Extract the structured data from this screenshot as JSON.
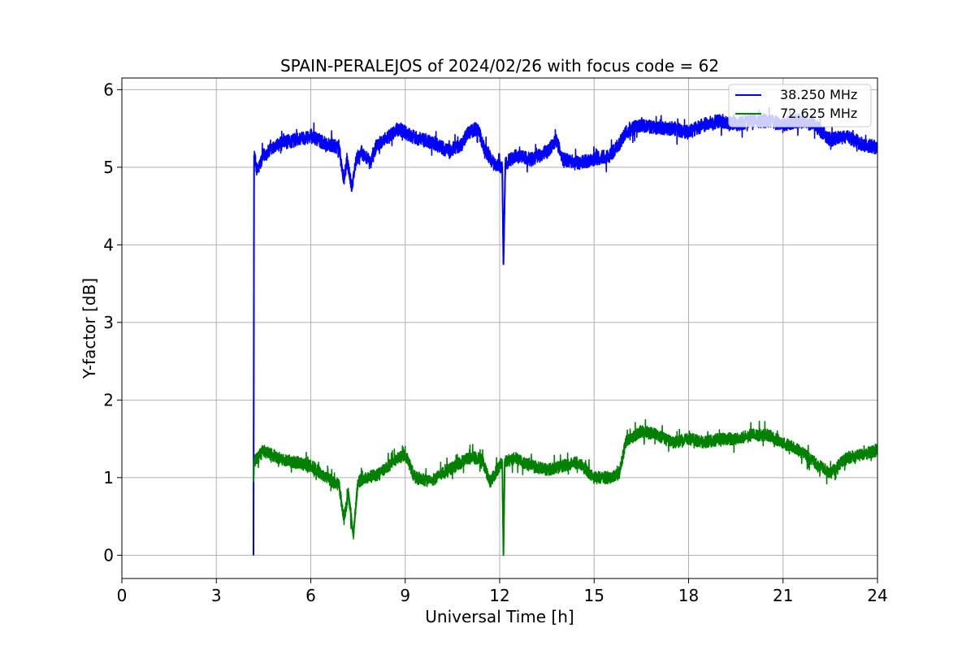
{
  "chart_data": {
    "type": "line",
    "title": "SPAIN-PERALEJOS of 2024/02/26 with focus code = 62",
    "xlabel": "Universal Time [h]",
    "ylabel": "Y-factor [dB]",
    "xlim": [
      0,
      24
    ],
    "ylim": [
      -0.3,
      6.15
    ],
    "xticks": [
      0,
      3,
      6,
      9,
      12,
      15,
      18,
      21,
      24
    ],
    "xtick_labels": [
      "0",
      "3",
      "6",
      "9",
      "12",
      "15",
      "18",
      "21",
      "24"
    ],
    "yticks": [
      0,
      1,
      2,
      3,
      4,
      5,
      6
    ],
    "ytick_labels": [
      "0",
      "1",
      "2",
      "3",
      "4",
      "5",
      "6"
    ],
    "grid": true,
    "legend_position": "top-right",
    "series": [
      {
        "name": "38.250 MHz",
        "color": "#0000ff",
        "noise_amplitude": 0.09,
        "points": [
          [
            4.18,
            0.0
          ],
          [
            4.2,
            5.15
          ],
          [
            4.3,
            4.95
          ],
          [
            4.5,
            5.15
          ],
          [
            5.0,
            5.3
          ],
          [
            5.5,
            5.35
          ],
          [
            6.0,
            5.4
          ],
          [
            6.5,
            5.3
          ],
          [
            6.9,
            5.25
          ],
          [
            7.05,
            4.8
          ],
          [
            7.15,
            5.1
          ],
          [
            7.3,
            4.75
          ],
          [
            7.45,
            5.1
          ],
          [
            7.6,
            5.2
          ],
          [
            7.9,
            5.05
          ],
          [
            8.1,
            5.3
          ],
          [
            8.5,
            5.4
          ],
          [
            8.8,
            5.5
          ],
          [
            9.2,
            5.4
          ],
          [
            9.6,
            5.35
          ],
          [
            10.0,
            5.3
          ],
          [
            10.4,
            5.2
          ],
          [
            10.8,
            5.3
          ],
          [
            11.0,
            5.45
          ],
          [
            11.3,
            5.5
          ],
          [
            11.5,
            5.25
          ],
          [
            11.8,
            5.05
          ],
          [
            12.08,
            5.0
          ],
          [
            12.12,
            3.75
          ],
          [
            12.18,
            5.05
          ],
          [
            12.5,
            5.15
          ],
          [
            13.0,
            5.1
          ],
          [
            13.5,
            5.2
          ],
          [
            13.8,
            5.35
          ],
          [
            14.0,
            5.1
          ],
          [
            14.5,
            5.05
          ],
          [
            15.0,
            5.1
          ],
          [
            15.5,
            5.15
          ],
          [
            15.8,
            5.3
          ],
          [
            16.0,
            5.45
          ],
          [
            16.5,
            5.55
          ],
          [
            17.0,
            5.5
          ],
          [
            17.5,
            5.5
          ],
          [
            18.0,
            5.45
          ],
          [
            18.5,
            5.55
          ],
          [
            19.0,
            5.6
          ],
          [
            19.5,
            5.55
          ],
          [
            20.0,
            5.6
          ],
          [
            20.5,
            5.6
          ],
          [
            21.0,
            5.55
          ],
          [
            21.5,
            5.6
          ],
          [
            22.0,
            5.55
          ],
          [
            22.5,
            5.35
          ],
          [
            23.0,
            5.4
          ],
          [
            23.5,
            5.3
          ],
          [
            24.0,
            5.25
          ]
        ]
      },
      {
        "name": "72.625 MHz",
        "color": "#008000",
        "noise_amplitude": 0.08,
        "points": [
          [
            4.18,
            0.95
          ],
          [
            4.2,
            1.2
          ],
          [
            4.5,
            1.35
          ],
          [
            5.0,
            1.25
          ],
          [
            5.5,
            1.2
          ],
          [
            6.0,
            1.15
          ],
          [
            6.5,
            1.0
          ],
          [
            6.9,
            0.9
          ],
          [
            7.05,
            0.45
          ],
          [
            7.2,
            0.8
          ],
          [
            7.35,
            0.25
          ],
          [
            7.5,
            0.95
          ],
          [
            7.8,
            1.0
          ],
          [
            8.2,
            1.05
          ],
          [
            8.6,
            1.2
          ],
          [
            9.0,
            1.3
          ],
          [
            9.3,
            1.0
          ],
          [
            9.8,
            0.95
          ],
          [
            10.2,
            1.05
          ],
          [
            10.6,
            1.15
          ],
          [
            11.0,
            1.25
          ],
          [
            11.4,
            1.25
          ],
          [
            11.7,
            0.95
          ],
          [
            12.0,
            1.15
          ],
          [
            12.08,
            1.2
          ],
          [
            12.12,
            0.0
          ],
          [
            12.16,
            1.2
          ],
          [
            12.5,
            1.25
          ],
          [
            13.0,
            1.15
          ],
          [
            13.5,
            1.1
          ],
          [
            14.0,
            1.15
          ],
          [
            14.5,
            1.2
          ],
          [
            15.0,
            1.0
          ],
          [
            15.5,
            1.0
          ],
          [
            15.8,
            1.05
          ],
          [
            16.0,
            1.45
          ],
          [
            16.5,
            1.6
          ],
          [
            17.0,
            1.55
          ],
          [
            17.5,
            1.45
          ],
          [
            18.0,
            1.5
          ],
          [
            18.5,
            1.45
          ],
          [
            19.0,
            1.5
          ],
          [
            19.5,
            1.5
          ],
          [
            20.0,
            1.55
          ],
          [
            20.5,
            1.55
          ],
          [
            21.0,
            1.45
          ],
          [
            21.5,
            1.35
          ],
          [
            22.0,
            1.2
          ],
          [
            22.5,
            1.05
          ],
          [
            23.0,
            1.25
          ],
          [
            23.5,
            1.3
          ],
          [
            24.0,
            1.35
          ]
        ]
      }
    ]
  }
}
